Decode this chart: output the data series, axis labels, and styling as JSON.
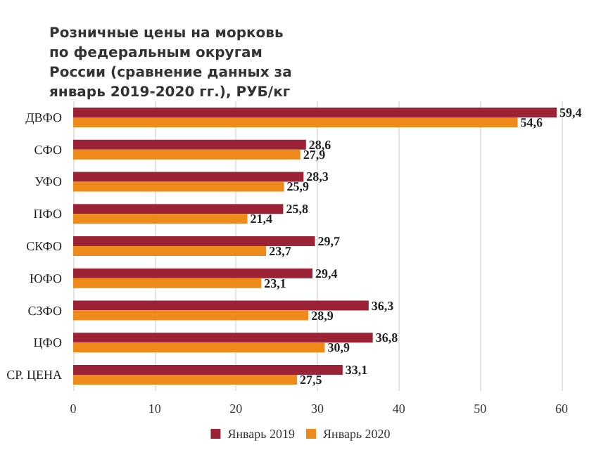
{
  "chart_data": {
    "type": "bar",
    "orientation": "horizontal",
    "title": "Розничные цены на морковь по федеральным округам России (сравнение данных за январь 2019-2020 гг.), РУБ/кг",
    "categories": [
      "ДВФО",
      "СФО",
      "УФО",
      "ПФО",
      "СКФО",
      "ЮФО",
      "СЗФО",
      "ЦФО",
      "СР. ЦЕНА"
    ],
    "series": [
      {
        "name": "Январь 2019",
        "color": "#9b2335",
        "values": [
          59.4,
          28.6,
          28.3,
          25.8,
          29.7,
          29.4,
          36.3,
          36.8,
          33.1
        ],
        "value_labels": [
          "59,4",
          "28,6",
          "28,3",
          "25,8",
          "29,7",
          "29,4",
          "36,3",
          "36,8",
          "33,1"
        ]
      },
      {
        "name": "Январь 2020",
        "color": "#ee8a1a",
        "values": [
          54.6,
          27.9,
          25.9,
          21.4,
          23.7,
          23.1,
          28.9,
          30.9,
          27.5
        ],
        "value_labels": [
          "54,6",
          "27,9",
          "25,9",
          "21,4",
          "23,7",
          "23,1",
          "28,9",
          "30,9",
          "27,5"
        ]
      }
    ],
    "xlim": [
      0,
      60
    ],
    "xticks": [
      0,
      10,
      20,
      30,
      40,
      50,
      60
    ],
    "grid": "x",
    "legend": "bottom"
  }
}
